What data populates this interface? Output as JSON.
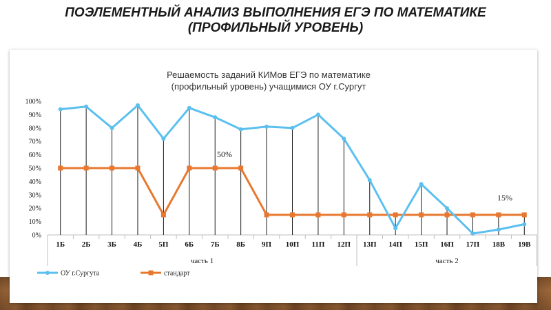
{
  "slide": {
    "title_line1": "ПОЭЛЕМЕНТНЫЙ АНАЛИЗ ВЫПОЛНЕНИЯ ЕГЭ ПО МАТЕМАТИКЕ",
    "title_line2": "(ПРОФИЛЬНЫЙ УРОВЕНЬ)"
  },
  "chart_data": {
    "type": "line",
    "title_line1": "Решаемость заданий КИМов ЕГЭ по математике",
    "title_line2": "(профильный уровень) учащимися ОУ г.Сургут",
    "categories": [
      "1Б",
      "2Б",
      "3Б",
      "4Б",
      "5П",
      "6Б",
      "7Б",
      "8Б",
      "9П",
      "10П",
      "11П",
      "12П",
      "13П",
      "14П",
      "15П",
      "16П",
      "17П",
      "18В",
      "19В"
    ],
    "groups": [
      {
        "label": "часть 1",
        "from": 0,
        "to": 11
      },
      {
        "label": "часть 2",
        "from": 12,
        "to": 18
      }
    ],
    "ylim": [
      0,
      100
    ],
    "yticks": [
      0,
      10,
      20,
      30,
      40,
      50,
      60,
      70,
      80,
      90,
      100
    ],
    "ytick_labels": [
      "0%",
      "10%",
      "20%",
      "30%",
      "40%",
      "50%",
      "60%",
      "70%",
      "80%",
      "90%",
      "100%"
    ],
    "series": [
      {
        "name": "ОУ г.Сургута",
        "color": "#5bc0ef",
        "marker": "circle",
        "values": [
          94,
          96,
          80,
          97,
          72,
          95,
          88,
          79,
          81,
          80,
          90,
          72,
          41,
          5,
          38,
          20,
          1,
          4,
          8
        ]
      },
      {
        "name": "стандарт",
        "color": "#e8782f",
        "marker": "square",
        "values": [
          50,
          50,
          50,
          50,
          15,
          50,
          50,
          50,
          15,
          15,
          15,
          15,
          15,
          15,
          15,
          15,
          15,
          15,
          15
        ]
      }
    ],
    "annotations": [
      "50%",
      "15%"
    ]
  }
}
